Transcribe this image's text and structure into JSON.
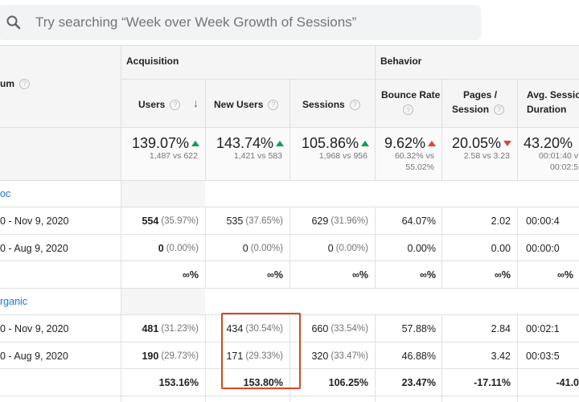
{
  "search": {
    "placeholder": "Try searching “Week over Week Growth of Sessions”"
  },
  "header": {
    "dimension_label": "um",
    "acquisition_label": "Acquisition",
    "behavior_label": "Behavior",
    "columns": [
      {
        "l1": "Users",
        "l2": ""
      },
      {
        "l1": "New Users",
        "l2": ""
      },
      {
        "l1": "Sessions",
        "l2": ""
      },
      {
        "l1": "Bounce Rate",
        "l2": ""
      },
      {
        "l1": "Pages /",
        "l2": "Session"
      },
      {
        "l1": "Avg. Session",
        "l2": "Duration"
      }
    ]
  },
  "totals": [
    {
      "value": "139.07%",
      "trend": "up",
      "sub1": "1,487 vs 622",
      "sub2": ""
    },
    {
      "value": "143.74%",
      "trend": "up",
      "sub1": "1,421 vs 583",
      "sub2": ""
    },
    {
      "value": "105.86%",
      "trend": "up",
      "sub1": "1,968 vs 956",
      "sub2": ""
    },
    {
      "value": "9.62%",
      "trend": "bad-up",
      "sub1": "60.32% vs",
      "sub2": "55.02%"
    },
    {
      "value": "20.05%",
      "trend": "down",
      "sub1": "2.58 vs 3.23",
      "sub2": ""
    },
    {
      "value": "43.20%",
      "trend": "",
      "sub1": "00:01:40 v",
      "sub2": "00:02:5"
    }
  ],
  "groups": [
    {
      "name": "oc",
      "rows": [
        {
          "label": "0 - Nov 9, 2020",
          "users": "554",
          "users_pct": "(35.97%)",
          "new_users": "535",
          "new_users_pct": "(37.65%)",
          "sessions": "629",
          "sessions_pct": "(31.96%)",
          "bounce": "64.07%",
          "pages": "2.02",
          "duration": "00:00:4"
        },
        {
          "label": "0 - Aug 9, 2020",
          "users": "0",
          "users_pct": "(0.00%)",
          "new_users": "0",
          "new_users_pct": "(0.00%)",
          "sessions": "0",
          "sessions_pct": "(0.00%)",
          "bounce": "0.00%",
          "pages": "0.00",
          "duration": "00:00:0"
        }
      ],
      "change": {
        "users": "∞%",
        "new_users": "∞%",
        "sessions": "∞%",
        "bounce": "∞%",
        "pages": "∞%",
        "duration": "∞%"
      }
    },
    {
      "name": "rganic",
      "rows": [
        {
          "label": "0 - Nov 9, 2020",
          "users": "481",
          "users_pct": "(31.23%)",
          "new_users": "434",
          "new_users_pct": "(30.54%)",
          "sessions": "660",
          "sessions_pct": "(33.54%)",
          "bounce": "57.88%",
          "pages": "2.84",
          "duration": "00:02:1"
        },
        {
          "label": "0 - Aug 9, 2020",
          "users": "190",
          "users_pct": "(29.73%)",
          "new_users": "171",
          "new_users_pct": "(29.33%)",
          "sessions": "320",
          "sessions_pct": "(33.47%)",
          "bounce": "46.88%",
          "pages": "3.42",
          "duration": "00:03:5"
        }
      ],
      "change": {
        "users": "153.16%",
        "new_users": "153.80%",
        "sessions": "106.25%",
        "bounce": "23.47%",
        "pages": "-17.11%",
        "duration": "-41.0"
      }
    }
  ],
  "colors": {
    "up": "#0f9d58",
    "down": "#db4437",
    "link": "#1a73e8",
    "highlight": "#d9481c"
  }
}
